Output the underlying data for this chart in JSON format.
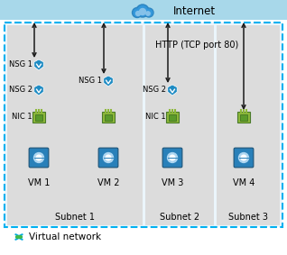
{
  "title": "Internet",
  "http_label": "HTTP (TCP port 80)",
  "vnet_label": "Virtual network",
  "subnet_labels": [
    "Subnet 1",
    "Subnet 2",
    "Subnet 3"
  ],
  "vm_labels": [
    "VM 1",
    "VM 2",
    "VM 3",
    "VM 4"
  ],
  "internet_bar_color": "#A8D8EA",
  "vnet_border_color": "#00B0F0",
  "subnet_bg_color": "#DCDCDC",
  "fig_bg": "#FFFFFF",
  "arrow_color": "#1A1A1A",
  "text_color": "#000000",
  "shield_color": "#1E8BC3",
  "nic_outer_color": "#5D8A3C",
  "nic_inner_color": "#7EC44A",
  "vm_outer_color": "#1565C0",
  "vm_inner_color": "#2980B9",
  "vm_highlight_color": "#AED6F1",
  "vnet_bg_color": "#EBF5FB"
}
